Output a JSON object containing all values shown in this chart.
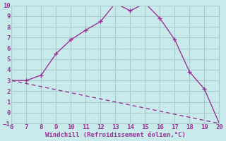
{
  "xlabel": "Windchill (Refroidissement éolien,°C)",
  "curve1_x": [
    6,
    7,
    8,
    9,
    10,
    11,
    12,
    13,
    14,
    15,
    16,
    17,
    18,
    19,
    20
  ],
  "curve1_y": [
    3.0,
    3.0,
    3.5,
    5.5,
    6.8,
    7.7,
    8.5,
    10.2,
    9.5,
    10.2,
    8.8,
    6.8,
    3.8,
    2.2,
    -1.0
  ],
  "curve2_x": [
    6,
    20
  ],
  "curve2_y": [
    3.0,
    -1.0
  ],
  "line_color": "#993399",
  "bg_color": "#c8eaea",
  "grid_color": "#aacccc",
  "xlim": [
    6,
    20
  ],
  "ylim": [
    -1,
    10
  ],
  "xticks": [
    6,
    7,
    8,
    9,
    10,
    11,
    12,
    13,
    14,
    15,
    16,
    17,
    18,
    19,
    20
  ],
  "yticks": [
    -1,
    0,
    1,
    2,
    3,
    4,
    5,
    6,
    7,
    8,
    9,
    10
  ],
  "tick_fontsize": 6.5,
  "xlabel_fontsize": 6.5
}
